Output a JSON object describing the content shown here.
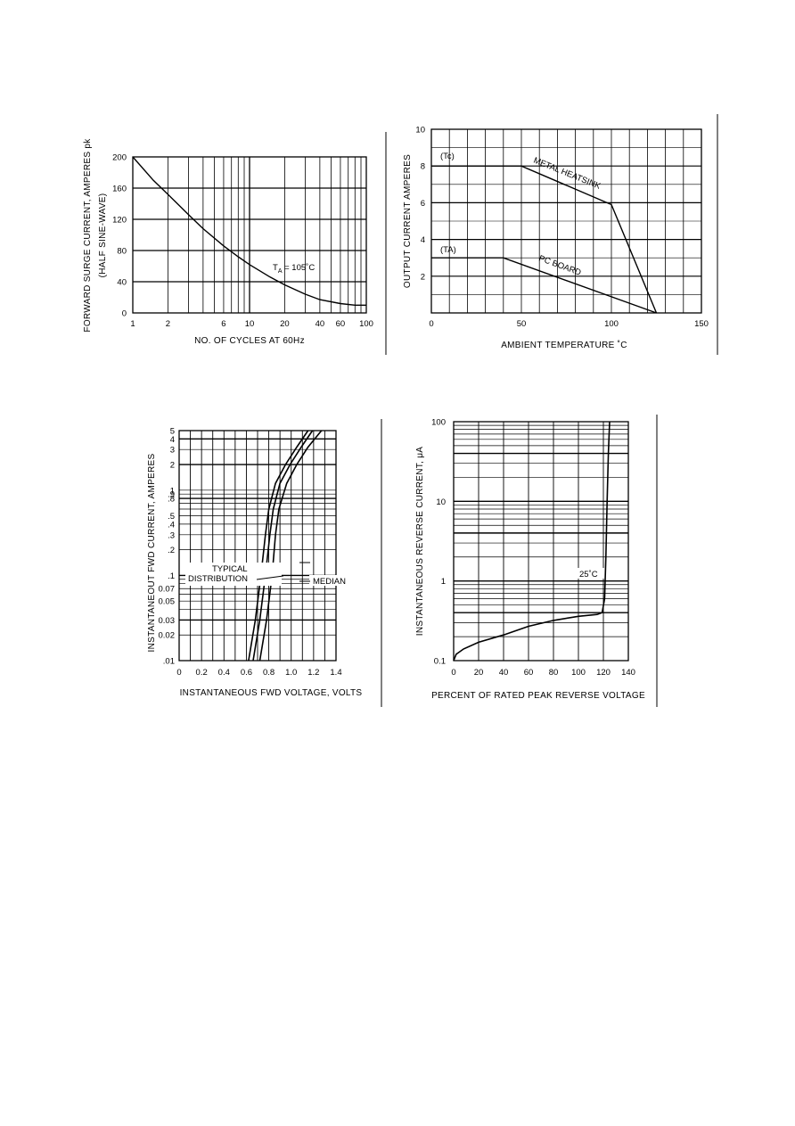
{
  "chart_data": [
    {
      "type": "line",
      "xlabel": "NO. OF CYCLES AT 60Hz",
      "ylabel": [
        "FORWARD SURGE CURRENT, AMPERES pk",
        "(HALF SINE-WAVE)"
      ],
      "xscale": "log",
      "xlim": [
        1,
        100
      ],
      "ylim": [
        0,
        200
      ],
      "x_tick_labels": [
        "1",
        "2",
        "6",
        "10",
        "20",
        "40",
        "60",
        "100"
      ],
      "y_tick_labels": [
        "200",
        "160",
        "120",
        "80",
        "40",
        "0"
      ],
      "grid": true,
      "annotations": [
        {
          "text_main": "T",
          "text_sub": "A",
          "text_tail": " = 105˚C"
        }
      ],
      "series": [
        {
          "x": [
            1,
            1.5,
            2,
            3,
            4,
            6,
            8,
            10,
            15,
            20,
            30,
            40,
            60,
            80,
            100
          ],
          "y": [
            200,
            170,
            152,
            126,
            108,
            86,
            72,
            62,
            46,
            36,
            24,
            17,
            12,
            10,
            10
          ]
        }
      ]
    },
    {
      "type": "line",
      "xlabel": "AMBIENT TEMPERATURE ˚C",
      "ylabel": "OUTPUT CURRENT AMPERES",
      "xlim": [
        0,
        150
      ],
      "ylim": [
        0,
        10
      ],
      "x_tick_labels": [
        "0",
        "50",
        "100",
        "150"
      ],
      "y_tick_labels": [
        "10",
        "8",
        "6",
        "4",
        "2"
      ],
      "grid": true,
      "annotations": [
        {
          "text": "(Tc)"
        },
        {
          "text": "(TA)"
        }
      ],
      "series": [
        {
          "name": "METAL HEATSINK",
          "x": [
            0,
            50,
            100,
            125
          ],
          "y": [
            8,
            8,
            5.9,
            0
          ]
        },
        {
          "name": "PC BOARD",
          "x": [
            0,
            40,
            125
          ],
          "y": [
            3,
            3,
            0
          ]
        }
      ]
    },
    {
      "type": "line",
      "xlabel": "INSTANTANEOUS FWD VOLTAGE, VOLTS",
      "ylabel": "INSTANTANEOUT FWD CURRENT, AMPERES",
      "yscale": "log",
      "xlim": [
        0,
        1.4
      ],
      "ylim": [
        0.01,
        5
      ],
      "x_tick_labels": [
        "0",
        "0.2",
        "0.4",
        "0.6",
        "0.8",
        "1.0",
        "1.2",
        "1.4"
      ],
      "y_tick_labels": [
        "5",
        "4",
        "3",
        "2",
        "1",
        ".9",
        ".8",
        ".5",
        ".4",
        ".3",
        ".2",
        ".1",
        "0.07",
        "0.05",
        "0.03",
        "0.02",
        ".01"
      ],
      "grid": true,
      "annotations": [
        {
          "text": "TYPICAL"
        },
        {
          "text": "DISTRIBUTION"
        },
        {
          "text": "MEDIAN"
        }
      ],
      "series": [
        {
          "x": [
            0.62,
            0.68,
            0.73,
            0.77,
            0.8,
            0.86,
            0.95,
            1.05,
            1.15
          ],
          "y": [
            0.01,
            0.03,
            0.1,
            0.3,
            0.6,
            1.2,
            2.0,
            3.2,
            5.0
          ]
        },
        {
          "x": [
            0.66,
            0.72,
            0.77,
            0.81,
            0.84,
            0.9,
            0.99,
            1.09,
            1.19
          ],
          "y": [
            0.01,
            0.03,
            0.1,
            0.3,
            0.6,
            1.2,
            2.0,
            3.2,
            5.0
          ]
        },
        {
          "x": [
            0.72,
            0.78,
            0.83,
            0.86,
            0.89,
            0.96,
            1.05,
            1.15,
            1.27
          ],
          "y": [
            0.01,
            0.03,
            0.1,
            0.3,
            0.6,
            1.2,
            2.0,
            3.2,
            5.0
          ]
        }
      ]
    },
    {
      "type": "line",
      "xlabel": "PERCENT OF RATED PEAK REVERSE VOLTAGE",
      "ylabel": "INSTANTANEOUS REVERSE CURRENT, μA",
      "yscale": "log",
      "xlim": [
        0,
        140
      ],
      "ylim": [
        0.1,
        100
      ],
      "x_tick_labels": [
        "0",
        "20",
        "40",
        "60",
        "80",
        "100",
        "120",
        "140"
      ],
      "y_tick_labels": [
        "100",
        "10",
        "1",
        "0.1"
      ],
      "grid": true,
      "annotations": [
        {
          "text": "25˚C"
        }
      ],
      "series": [
        {
          "x": [
            0,
            2,
            8,
            20,
            40,
            60,
            80,
            100,
            115,
            119,
            121,
            122,
            123,
            124,
            125
          ],
          "y": [
            0.1,
            0.12,
            0.14,
            0.17,
            0.21,
            0.27,
            0.32,
            0.36,
            0.38,
            0.4,
            0.6,
            2,
            10,
            40,
            100
          ]
        }
      ]
    }
  ]
}
